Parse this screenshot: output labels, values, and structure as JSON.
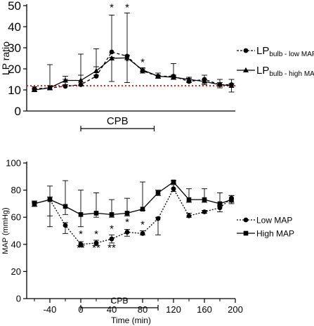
{
  "chart_data": [
    {
      "type": "line",
      "ylabel": "LP ratio",
      "ylim": [
        0,
        50
      ],
      "yticks": [
        0,
        10,
        20,
        30,
        40,
        50
      ],
      "xlim": [
        -70,
        200
      ],
      "x": [
        -60,
        -40,
        -20,
        0,
        20,
        40,
        60,
        80,
        100,
        120,
        140,
        160,
        180,
        195
      ],
      "reference_line": {
        "y": 12,
        "color": "#e8211d",
        "style": "dotted"
      },
      "series": [
        {
          "name": "LP bulb - low MAP",
          "legend_main": "LP",
          "legend_sub": "bulb - low MAP",
          "marker": "circle",
          "dash": "dashed",
          "values": [
            10.5,
            11,
            11.7,
            12.5,
            16.5,
            28,
            26,
            19,
            16.5,
            16.5,
            14,
            15,
            12.5,
            12.5
          ],
          "upper_error": [
            11.5,
            22,
            15,
            27,
            29.5,
            45.5,
            46.5,
            20.5,
            18,
            22.5,
            15.5,
            17,
            15,
            15
          ]
        },
        {
          "name": "LP bulb - high MAP",
          "legend_main": "LP",
          "legend_sub": "bulb - high MAP",
          "marker": "triangle",
          "dash": "solid",
          "values": [
            10,
            11,
            14.5,
            14.5,
            19,
            25,
            25.2,
            19.5,
            16.5,
            16,
            15,
            14,
            12.5,
            12
          ],
          "upper_error": [
            10.5,
            12,
            16.5,
            17,
            21,
            25.5,
            26.5,
            20,
            17,
            17,
            16,
            15,
            13.5,
            13
          ],
          "lower_error": [
            9.5,
            10,
            12.5,
            12,
            17,
            14,
            13.5,
            18,
            15.5,
            15,
            13.5,
            12.5,
            11,
            9
          ]
        }
      ],
      "annotations": [
        {
          "x": 40,
          "y": 47.5,
          "text": "*"
        },
        {
          "x": 60,
          "y": 47.5,
          "text": "*"
        },
        {
          "x": 60,
          "y": 22,
          "text": "*"
        },
        {
          "x": 80,
          "y": 21.5,
          "text": "*"
        }
      ],
      "bracket": {
        "label": "CPB",
        "x_start": 0,
        "x_end": 95
      }
    },
    {
      "type": "line",
      "xlabel": "Time (min)",
      "ylabel": "MAP (mmHg)",
      "ylim": [
        0,
        100
      ],
      "yticks": [
        0,
        20,
        40,
        60,
        80,
        100
      ],
      "xlim": [
        -70,
        200
      ],
      "xticks": [
        -40,
        0,
        40,
        80,
        120,
        160,
        200
      ],
      "x_ticklabels": [
        "-40",
        "0",
        "40",
        "80",
        "120",
        "160",
        "200"
      ],
      "x_minor_ticks": [
        -60,
        -20,
        20,
        60,
        100,
        140,
        180
      ],
      "x": [
        -60,
        -40,
        -20,
        0,
        20,
        40,
        60,
        80,
        100,
        120,
        140,
        160,
        180,
        195
      ],
      "series": [
        {
          "name": "Low MAP",
          "marker": "circle",
          "dash": "dotted",
          "values": [
            70,
            73,
            54,
            40,
            41,
            44,
            49,
            48,
            59,
            81,
            61,
            64,
            67,
            74
          ],
          "lower_error": [
            68,
            61,
            48,
            38,
            39,
            41,
            46,
            47,
            47,
            79,
            60,
            63,
            64,
            70
          ],
          "upper_error": [
            71,
            75,
            56,
            42,
            43,
            47,
            51,
            50,
            60,
            84,
            63,
            65,
            69,
            76
          ]
        },
        {
          "name": "High MAP",
          "marker": "square",
          "dash": "solid",
          "values": [
            70,
            73,
            68,
            62,
            63,
            62,
            63,
            66,
            78,
            86,
            73,
            73,
            70,
            73
          ],
          "upper_error": [
            72,
            83,
            87,
            80,
            78,
            73,
            74,
            86,
            80,
            87,
            81,
            81,
            78,
            76
          ],
          "lower_error": [
            68,
            53,
            62,
            53,
            60,
            60,
            61,
            65,
            76,
            85,
            71,
            71,
            68,
            71
          ]
        }
      ],
      "annotations": [
        {
          "x": 0,
          "y": 45,
          "text": "*"
        },
        {
          "x": 20,
          "y": 45,
          "text": "*"
        },
        {
          "x": 40,
          "y": 49,
          "text": "*"
        },
        {
          "x": 60,
          "y": 54,
          "text": "*"
        },
        {
          "x": 80,
          "y": 52,
          "text": "*"
        },
        {
          "x": 0,
          "y": 35,
          "text": "**"
        },
        {
          "x": 20,
          "y": 35,
          "text": "**"
        },
        {
          "x": 40,
          "y": 35,
          "text": "**"
        }
      ],
      "bracket": {
        "label": "CPB",
        "x_start": 0,
        "x_end": 100
      }
    }
  ]
}
